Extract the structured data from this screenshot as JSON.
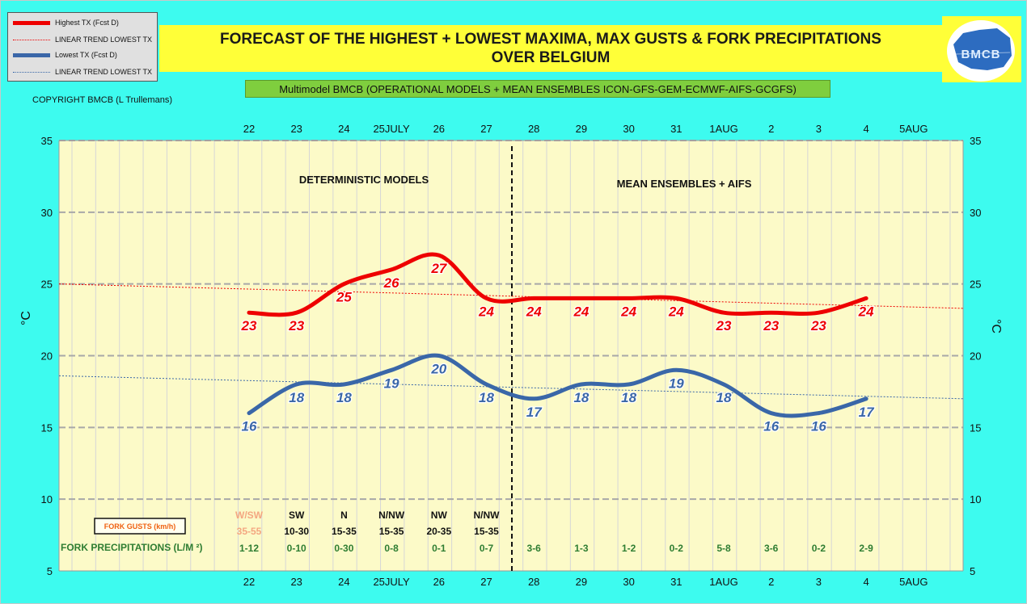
{
  "title": {
    "line1": "FORECAST OF THE HIGHEST + LOWEST MAXIMA, MAX GUSTS & FORK PRECIPITATIONS",
    "line2": "OVER BELGIUM"
  },
  "subtitle": "Multimodel BMCB (OPERATIONAL MODELS + MEAN ENSEMBLES  ICON-GFS-GEM-ECMWF-AIFS-GCGFS)",
  "copyright": "COPYRIGHT BMCB (L Trullemans)",
  "logo": {
    "text": "BMCB"
  },
  "legend": [
    {
      "label": "Highest TX (Fcst D)",
      "color": "#ee0000",
      "style": "thick"
    },
    {
      "label": "LINEAR TREND LOWEST  TX",
      "color": "#ee0000",
      "style": "dotted"
    },
    {
      "label": "Lowest TX (Fcst D)",
      "color": "#3a67a8",
      "style": "thick"
    },
    {
      "label": "LINEAR TREND LOWEST TX",
      "color": "#3a67a8",
      "style": "dotted"
    }
  ],
  "colors": {
    "background": "#3dfbef",
    "plot": "#fcfac8",
    "highest": "#ee0000",
    "lowest": "#3a67a8",
    "precip": "#2e7d32",
    "gust_first": "#f4a781",
    "gust_box": "#f06010"
  },
  "chart_data": {
    "type": "line",
    "ylabel": "°C",
    "ylim": [
      5,
      35
    ],
    "yticks": [
      5,
      10,
      15,
      20,
      25,
      30,
      35
    ],
    "grid": true,
    "x_tick_labels": [
      "22",
      "23",
      "24",
      "25JULY",
      "26",
      "27",
      "28",
      "29",
      "30",
      "31",
      "1AUG",
      "2",
      "3",
      "4",
      "5AUG"
    ],
    "section_labels": [
      "DETERMINISTIC MODELS",
      "MEAN ENSEMBLES + AIFS"
    ],
    "series": [
      {
        "name": "Highest TX (Fcst D)",
        "values": [
          23,
          23,
          25,
          26,
          27,
          24,
          24,
          24,
          24,
          24,
          23,
          23,
          23,
          24
        ]
      },
      {
        "name": "Lowest TX (Fcst D)",
        "values": [
          16,
          18,
          18,
          19,
          20,
          18,
          17,
          18,
          18,
          19,
          18,
          16,
          16,
          17
        ]
      }
    ],
    "trend_highest": {
      "start": 25.0,
      "end": 23.3
    },
    "trend_lowest": {
      "start": 18.6,
      "end": 17.0
    },
    "gusts_label": "FORK GUSTS (km/h)",
    "gusts": [
      {
        "dir": "W/SW",
        "range": "35-55"
      },
      {
        "dir": "SW",
        "range": "10-30"
      },
      {
        "dir": "N",
        "range": "15-35"
      },
      {
        "dir": "N/NW",
        "range": "15-35"
      },
      {
        "dir": "NW",
        "range": "20-35"
      },
      {
        "dir": "N/NW",
        "range": "15-35"
      }
    ],
    "precip_label": "FORK PRECIPITATIONS (L/M ²)",
    "precip": [
      "1-12",
      "0-10",
      "0-30",
      "0-8",
      "0-1",
      "0-7",
      "3-6",
      "1-3",
      "1-2",
      "0-2",
      "5-8",
      "3-6",
      "0-2",
      "2-9"
    ]
  }
}
